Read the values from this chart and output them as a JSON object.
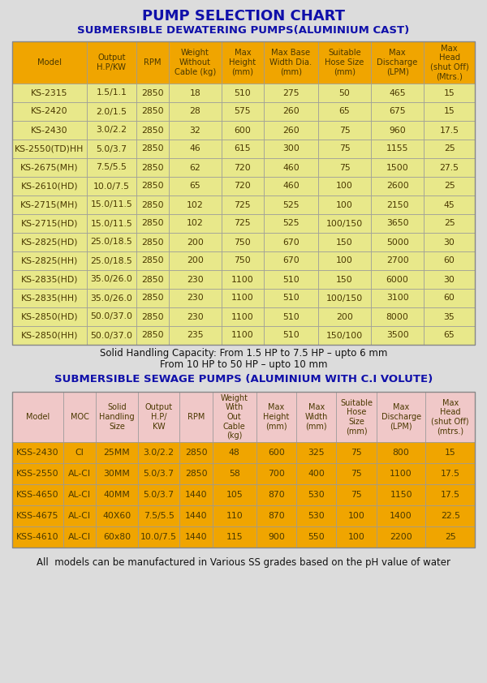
{
  "title": "PUMP SELECTION CHART",
  "subtitle1": "SUBMERSIBLE DEWATERING PUMPS(ALUMINIUM CAST)",
  "subtitle2": "SUBMERSIBLE SEWAGE PUMPS (ALUMINIUM WITH C.I VOLUTE)",
  "footer_note1": "Solid Handling Capacity: From 1.5 HP to 7.5 HP – upto 6 mm",
  "footer_note2": "From 10 HP to 50 HP – upto 10 mm",
  "footer_note3": "All  models can be manufactured in Various SS grades based on the pH value of water",
  "table1_headers": [
    "Model",
    "Output\nH.P/KW",
    "RPM",
    "Weight\nWithout\nCable (kg)",
    "Max\nHeight\n(mm)",
    "Max Base\nWidth Dia.\n(mm)",
    "Suitable\nHose Size\n(mm)",
    "Max\nDischarge\n(LPM)",
    "Max\nHead\n(shut Off)\n(Mtrs.)"
  ],
  "table1_data": [
    [
      "KS-2315",
      "1.5/1.1",
      "2850",
      "18",
      "510",
      "275",
      "50",
      "465",
      "15"
    ],
    [
      "KS-2420",
      "2.0/1.5",
      "2850",
      "28",
      "575",
      "260",
      "65",
      "675",
      "15"
    ],
    [
      "KS-2430",
      "3.0/2.2",
      "2850",
      "32",
      "600",
      "260",
      "75",
      "960",
      "17.5"
    ],
    [
      "KS-2550(TD)HH",
      "5.0/3.7",
      "2850",
      "46",
      "615",
      "300",
      "75",
      "1155",
      "25"
    ],
    [
      "KS-2675(MH)",
      "7.5/5.5",
      "2850",
      "62",
      "720",
      "460",
      "75",
      "1500",
      "27.5"
    ],
    [
      "KS-2610(HD)",
      "10.0/7.5",
      "2850",
      "65",
      "720",
      "460",
      "100",
      "2600",
      "25"
    ],
    [
      "KS-2715(MH)",
      "15.0/11.5",
      "2850",
      "102",
      "725",
      "525",
      "100",
      "2150",
      "45"
    ],
    [
      "KS-2715(HD)",
      "15.0/11.5",
      "2850",
      "102",
      "725",
      "525",
      "100/150",
      "3650",
      "25"
    ],
    [
      "KS-2825(HD)",
      "25.0/18.5",
      "2850",
      "200",
      "750",
      "670",
      "150",
      "5000",
      "30"
    ],
    [
      "KS-2825(HH)",
      "25.0/18.5",
      "2850",
      "200",
      "750",
      "670",
      "100",
      "2700",
      "60"
    ],
    [
      "KS-2835(HD)",
      "35.0/26.0",
      "2850",
      "230",
      "1100",
      "510",
      "150",
      "6000",
      "30"
    ],
    [
      "KS-2835(HH)",
      "35.0/26.0",
      "2850",
      "230",
      "1100",
      "510",
      "100/150",
      "3100",
      "60"
    ],
    [
      "KS-2850(HD)",
      "50.0/37.0",
      "2850",
      "230",
      "1100",
      "510",
      "200",
      "8000",
      "35"
    ],
    [
      "KS-2850(HH)",
      "50.0/37.0",
      "2850",
      "235",
      "1100",
      "510",
      "150/100",
      "3500",
      "65"
    ]
  ],
  "table2_headers": [
    "Model",
    "MOC",
    "Solid\nHandling\nSize",
    "Output\nH.P/\nKW",
    "RPM",
    "Weight\nWith\nOut\nCable\n(kg)",
    "Max\nHeight\n(mm)",
    "Max\nWidth\n(mm)",
    "Suitable\nHose\nSize\n(mm)",
    "Max\nDischarge\n(LPM)",
    "Max\nHead\n(shut Off)\n(mtrs.)"
  ],
  "table2_data": [
    [
      "KSS-2430",
      "CI",
      "25MM",
      "3.0/2.2",
      "2850",
      "48",
      "600",
      "325",
      "75",
      "800",
      "15"
    ],
    [
      "KSS-2550",
      "AL-CI",
      "30MM",
      "5.0/3.7",
      "2850",
      "58",
      "700",
      "400",
      "75",
      "1100",
      "17.5"
    ],
    [
      "KSS-4650",
      "AL-CI",
      "40MM",
      "5.0/3.7",
      "1440",
      "105",
      "870",
      "530",
      "75",
      "1150",
      "17.5"
    ],
    [
      "KSS-4675",
      "AL-CI",
      "40X60",
      "7.5/5.5",
      "1440",
      "110",
      "870",
      "530",
      "100",
      "1400",
      "22.5"
    ],
    [
      "KSS-4610",
      "AL-CI",
      "60x80",
      "10.0/7.5",
      "1440",
      "115",
      "900",
      "550",
      "100",
      "2200",
      "25"
    ]
  ],
  "bg_color": "#dcdcdc",
  "table1_header_bg": "#f0a500",
  "table1_row_bg": "#e8e88a",
  "table2_header_bg": "#f0c8c8",
  "table2_row_bg": "#f0a500",
  "title_color": "#1010aa",
  "subtitle_color": "#1010aa",
  "cell_text_color": "#4a3800",
  "header_text_color": "#4a3800",
  "border_color": "#999999",
  "t1_col_widths": [
    82,
    54,
    36,
    58,
    46,
    60,
    58,
    58,
    56
  ],
  "t2_col_widths": [
    56,
    36,
    46,
    46,
    36,
    48,
    44,
    44,
    44,
    54,
    54
  ]
}
